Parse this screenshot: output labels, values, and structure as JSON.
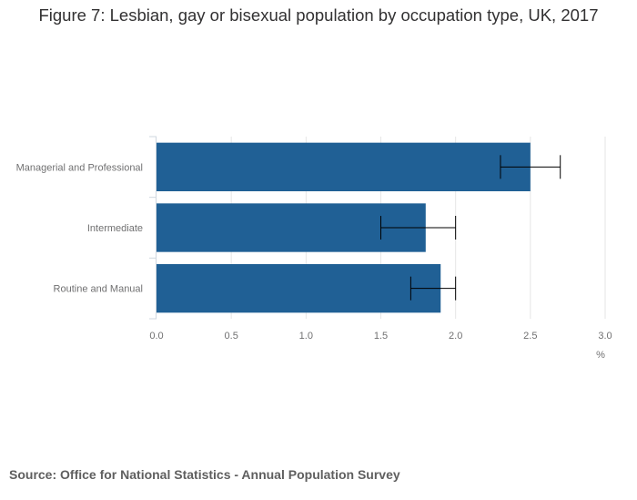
{
  "title": "Figure 7: Lesbian, gay or bisexual population by occupation type, UK, 2017",
  "source": "Source: Office for National Statistics - Annual Population Survey",
  "chart_data": {
    "type": "bar",
    "orientation": "horizontal",
    "title": "Figure 7: Lesbian, gay or bisexual population by occupation type, UK, 2017",
    "categories": [
      "Managerial and Professional",
      "Intermediate",
      "Routine and Manual"
    ],
    "values": [
      2.5,
      1.8,
      1.9
    ],
    "error_low": [
      2.3,
      1.5,
      1.7
    ],
    "error_high": [
      2.7,
      2.0,
      2.0
    ],
    "xlabel": "%",
    "ylabel": "",
    "xlim": [
      0,
      3.0
    ],
    "xticks": [
      "0.0",
      "0.5",
      "1.0",
      "1.5",
      "2.0",
      "2.5",
      "3.0"
    ],
    "grid": true,
    "bar_color": "#206095",
    "error_color": "#000000"
  }
}
